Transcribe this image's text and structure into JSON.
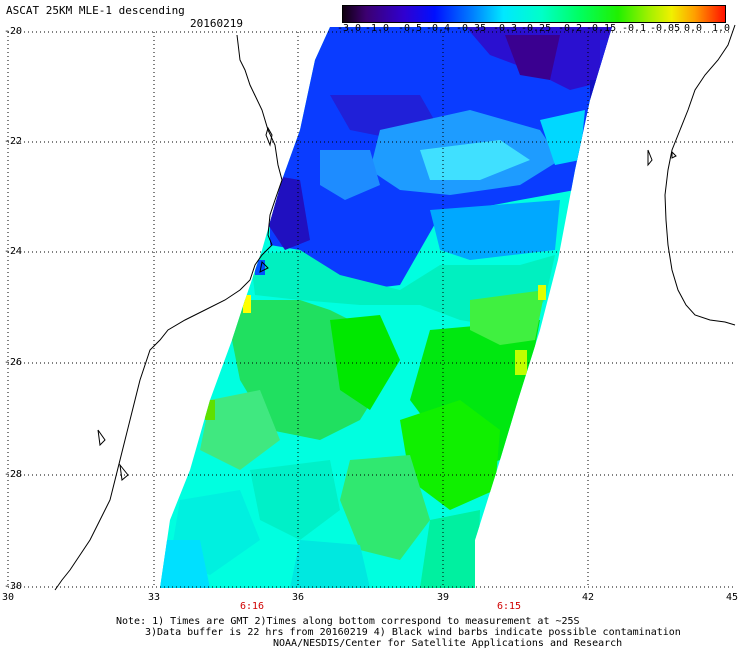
{
  "header": {
    "title": "ASCAT 25KM MLE-1 descending",
    "date": "20160219"
  },
  "colorbar": {
    "labels": [
      "-3.0",
      "-1.0",
      "-0.5",
      "-0.4",
      "-0.35",
      "-0.3",
      "-0.25",
      "-0.2",
      "-0.15",
      "-0.1",
      "-0.05",
      "0.0",
      "1.0"
    ],
    "colors": [
      "#200020",
      "#3c0070",
      "#3a00c8",
      "#0020ff",
      "#0078ff",
      "#00e0ff",
      "#00ffd0",
      "#00ff80",
      "#00f000",
      "#90f000",
      "#e0ff00",
      "#ffd000",
      "#ff8000",
      "#ff2000"
    ]
  },
  "axes": {
    "lat_labels": [
      "-20",
      "-22",
      "-24",
      "-26",
      "-28",
      "-30"
    ],
    "lon_labels": [
      "30",
      "33",
      "36",
      "39",
      "42",
      "45"
    ]
  },
  "times": [
    "6:16",
    "6:15"
  ],
  "notes": [
    "Note: 1) Times are GMT 2)Times along bottom correspond to measurement at ~25S",
    "3)Data buffer is 22 hrs from 20160219 4) Black wind barbs indicate possible contamination",
    "NOAA/NESDIS/Center for Satellite Applications and Research"
  ]
}
